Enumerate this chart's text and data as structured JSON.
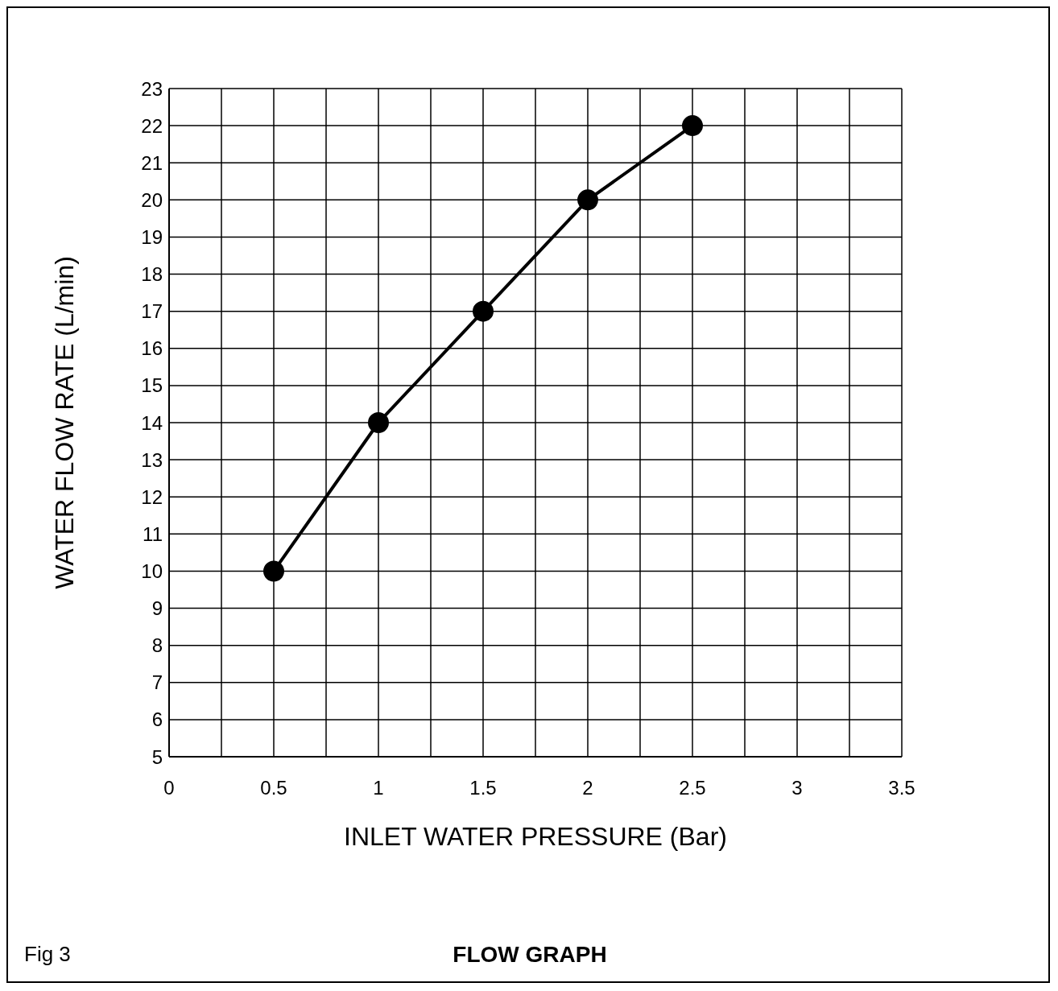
{
  "chart_data": {
    "type": "line",
    "title": "FLOW GRAPH",
    "xlabel": "INLET WATER PRESSURE (Bar)",
    "ylabel": "WATER FLOW RATE (L/min)",
    "annotations": [
      "Fig 3"
    ],
    "x": [
      0.5,
      1,
      1.5,
      2,
      2.5
    ],
    "series": [
      {
        "color": "#000000",
        "values": [
          10,
          14,
          17,
          20,
          22
        ]
      }
    ],
    "xlim": [
      0,
      3.5
    ],
    "xticks": [
      0,
      {
        "value": 0.25,
        "label": null
      },
      0.5,
      {
        "value": 0.75,
        "label": null
      },
      1,
      {
        "value": 1.25,
        "label": null
      },
      1.5,
      {
        "value": 1.75,
        "label": null
      },
      2,
      {
        "value": 2.25,
        "label": null
      },
      2.5,
      {
        "value": 2.75,
        "label": null
      },
      3,
      {
        "value": 3.25,
        "label": null
      },
      3.5
    ],
    "ylim": [
      5,
      23
    ],
    "yticks": [
      5,
      6,
      7,
      8,
      9,
      10,
      11,
      12,
      13,
      14,
      15,
      16,
      17,
      18,
      19,
      20,
      21,
      22,
      23
    ],
    "grid": true,
    "marker": "circle",
    "line_style": "solid"
  }
}
